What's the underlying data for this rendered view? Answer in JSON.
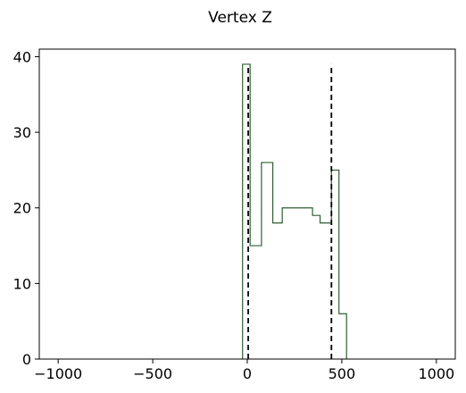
{
  "chart_data": {
    "type": "histogram",
    "title": "Vertex Z",
    "xlabel": "",
    "ylabel": "",
    "xlim": [
      -1100,
      1100
    ],
    "ylim": [
      0,
      41
    ],
    "xticks": [
      -1000,
      -500,
      0,
      500,
      1000
    ],
    "xtick_labels": [
      "−1000",
      "−500",
      "0",
      "500",
      "1000"
    ],
    "yticks": [
      0,
      10,
      20,
      30,
      40
    ],
    "ytick_labels": [
      "0",
      "10",
      "20",
      "30",
      "40"
    ],
    "histogram": {
      "edges": [
        -25,
        15,
        75,
        135,
        185,
        225,
        265,
        305,
        345,
        385,
        445,
        485,
        525
      ],
      "counts": [
        39,
        15,
        26,
        18,
        20,
        20,
        20,
        20,
        19,
        18,
        25,
        6
      ],
      "color": "#2e5e32"
    },
    "reference_lines": [
      {
        "x": 5,
        "y_top": 39,
        "color": "#000000",
        "style": "dashed"
      },
      {
        "x": 445,
        "y_top": 39,
        "color": "#000000",
        "style": "dashed"
      }
    ],
    "grid": false
  }
}
